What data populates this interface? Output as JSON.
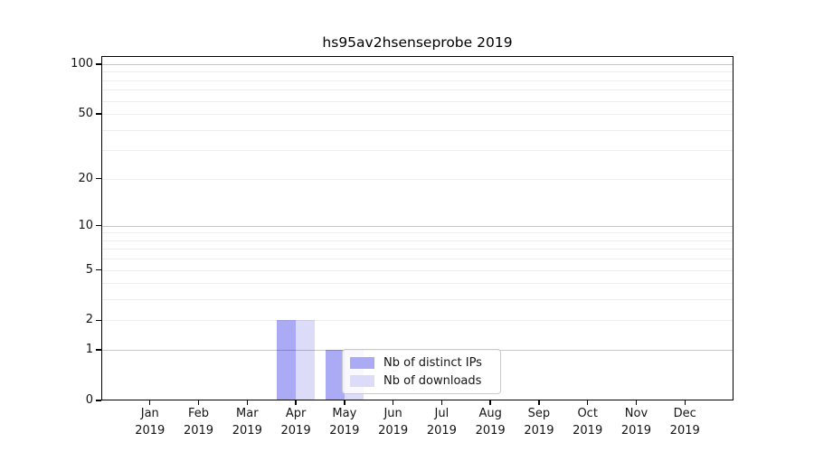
{
  "chart_data": {
    "type": "bar",
    "title": "hs95av2hsenseprobe 2019",
    "categories": [
      "Jan",
      "Feb",
      "Mar",
      "Apr",
      "May",
      "Jun",
      "Jul",
      "Aug",
      "Sep",
      "Oct",
      "Nov",
      "Dec"
    ],
    "x_tick_year": "2019",
    "series": [
      {
        "name": "Nb of distinct IPs",
        "color": "#aaaaf5",
        "values": [
          0,
          0,
          0,
          2,
          1,
          0,
          0,
          0,
          0,
          0,
          0,
          0
        ]
      },
      {
        "name": "Nb of downloads",
        "color": "#dcdcf9",
        "values": [
          0,
          0,
          0,
          2,
          1,
          0,
          0,
          0,
          0,
          0,
          0,
          0
        ]
      }
    ],
    "yscale": "log1p",
    "ylim": [
      0,
      112
    ],
    "ytick_labels": [
      "0",
      "1",
      "2",
      "5",
      "10",
      "20",
      "50",
      "100"
    ],
    "ytick_values": [
      0,
      1,
      2,
      5,
      10,
      20,
      50,
      100
    ],
    "major_grid_values": [
      1,
      10,
      100
    ],
    "minor_grid_values": [
      2,
      3,
      4,
      5,
      6,
      7,
      8,
      9,
      20,
      30,
      40,
      50,
      60,
      70,
      80,
      90
    ],
    "grid": "horizontal",
    "legend_position": "lower center, inside axes"
  },
  "colors": {
    "series_distinct_ips": "#aaaaf5",
    "series_downloads": "#dcdcf9",
    "major_grid": "#c6c6c6",
    "minor_grid": "#ededed",
    "spine": "#000000",
    "legend_border": "#cbcbcb",
    "text": "#141414"
  }
}
